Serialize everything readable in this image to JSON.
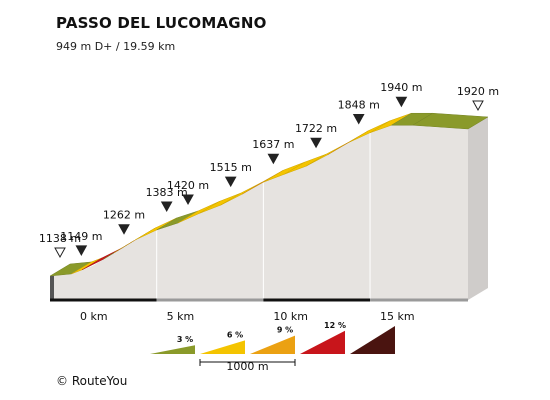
{
  "header": {
    "title": "PASSO DEL LUCOMAGNO",
    "subtitle": "949 m D+ / 19.59 km"
  },
  "footer": {
    "credit": "© RouteYou"
  },
  "chart_data": {
    "type": "area",
    "title": "PASSO DEL LUCOMAGNO",
    "subtitle": "949 m D+ / 19.59 km",
    "xlim": [
      0,
      19.59
    ],
    "distance_ticks": [
      {
        "km": 0,
        "label": "0 km"
      },
      {
        "km": 5,
        "label": "5 km"
      },
      {
        "km": 10,
        "label": "10 km"
      },
      {
        "km": 15,
        "label": "15 km"
      }
    ],
    "profile": [
      {
        "km": 0.0,
        "elev": 1138
      },
      {
        "km": 1.0,
        "elev": 1149
      },
      {
        "km": 2.0,
        "elev": 1192
      },
      {
        "km": 3.0,
        "elev": 1262
      },
      {
        "km": 4.0,
        "elev": 1330
      },
      {
        "km": 5.0,
        "elev": 1383
      },
      {
        "km": 6.0,
        "elev": 1420
      },
      {
        "km": 7.0,
        "elev": 1471
      },
      {
        "km": 8.0,
        "elev": 1515
      },
      {
        "km": 9.0,
        "elev": 1573
      },
      {
        "km": 10.0,
        "elev": 1637
      },
      {
        "km": 11.0,
        "elev": 1680
      },
      {
        "km": 12.0,
        "elev": 1722
      },
      {
        "km": 13.0,
        "elev": 1782
      },
      {
        "km": 14.0,
        "elev": 1848
      },
      {
        "km": 15.0,
        "elev": 1900
      },
      {
        "km": 16.0,
        "elev": 1940
      },
      {
        "km": 17.0,
        "elev": 1940
      },
      {
        "km": 18.0,
        "elev": 1930
      },
      {
        "km": 19.59,
        "elev": 1920
      }
    ],
    "segments": [
      {
        "from": 0,
        "to": 1,
        "grade": 1.1,
        "color": "#8a9a2a"
      },
      {
        "from": 1,
        "to": 1.5,
        "grade": 3.5,
        "color": "#f4c400"
      },
      {
        "from": 1.5,
        "to": 2.5,
        "grade": 12.1,
        "color": "#c8151b"
      },
      {
        "from": 2.5,
        "to": 3.0,
        "grade": 4.0,
        "color": "#8a9a2a"
      },
      {
        "from": 3.0,
        "to": 4.0,
        "grade": 6.8,
        "color": "#eba112"
      },
      {
        "from": 4.0,
        "to": 5.0,
        "grade": 5.3,
        "color": "#f4c400"
      },
      {
        "from": 5.0,
        "to": 6.0,
        "grade": 3.7,
        "color": "#8a9a2a"
      },
      {
        "from": 6.0,
        "to": 7.0,
        "grade": 5.1,
        "color": "#f4c400"
      },
      {
        "from": 7.0,
        "to": 8.0,
        "grade": 4.4,
        "color": "#f4c400"
      },
      {
        "from": 8.0,
        "to": 9.0,
        "grade": 5.8,
        "color": "#f4c400"
      },
      {
        "from": 9.0,
        "to": 10.0,
        "grade": 6.4,
        "color": "#eba112"
      },
      {
        "from": 10.0,
        "to": 11.0,
        "grade": 4.3,
        "color": "#f4c400"
      },
      {
        "from": 11.0,
        "to": 12.0,
        "grade": 4.2,
        "color": "#f4c400"
      },
      {
        "from": 12.0,
        "to": 13.0,
        "grade": 6.0,
        "color": "#f4c400"
      },
      {
        "from": 13.0,
        "to": 14.0,
        "grade": 6.6,
        "color": "#eba112"
      },
      {
        "from": 14.0,
        "to": 15.0,
        "grade": 5.2,
        "color": "#f4c400"
      },
      {
        "from": 15.0,
        "to": 16.0,
        "grade": 4.0,
        "color": "#f4c400"
      },
      {
        "from": 16.0,
        "to": 17.0,
        "grade": 0.0,
        "color": "#8a9a2a"
      },
      {
        "from": 17.0,
        "to": 19.59,
        "grade": -1.0,
        "color": "#8a9a2a"
      }
    ],
    "markers": [
      {
        "km": 0.0,
        "elev": 1138,
        "label": "1138 m",
        "kind": "start"
      },
      {
        "km": 1.0,
        "elev": 1149,
        "label": "1149 m",
        "kind": "point"
      },
      {
        "km": 3.0,
        "elev": 1262,
        "label": "1262 m",
        "kind": "point"
      },
      {
        "km": 5.0,
        "elev": 1383,
        "label": "1383 m",
        "kind": "point"
      },
      {
        "km": 6.0,
        "elev": 1420,
        "label": "1420 m",
        "kind": "point"
      },
      {
        "km": 8.0,
        "elev": 1515,
        "label": "1515 m",
        "kind": "point"
      },
      {
        "km": 10.0,
        "elev": 1637,
        "label": "1637 m",
        "kind": "point"
      },
      {
        "km": 12.0,
        "elev": 1722,
        "label": "1722 m",
        "kind": "point"
      },
      {
        "km": 14.0,
        "elev": 1848,
        "label": "1848 m",
        "kind": "point"
      },
      {
        "km": 16.0,
        "elev": 1940,
        "label": "1940 m",
        "kind": "point"
      },
      {
        "km": 19.59,
        "elev": 1920,
        "label": "1920 m",
        "kind": "end"
      }
    ],
    "legend": {
      "items": [
        {
          "label": "3 %",
          "color": "#8a9a2a",
          "grade": 3
        },
        {
          "label": "6 %",
          "color": "#f4c400",
          "grade": 6
        },
        {
          "label": "9 %",
          "color": "#eba112",
          "grade": 9
        },
        {
          "label": "12 %",
          "color": "#c8151b",
          "grade": 12
        },
        {
          "label": "",
          "color": "#4a1410",
          "grade": 15
        }
      ],
      "scale_label": "1000 m"
    },
    "colors": {
      "face": "#e6e3e0",
      "base": "#d8d5d2",
      "marker": "#222222",
      "axis": "#111111"
    }
  }
}
